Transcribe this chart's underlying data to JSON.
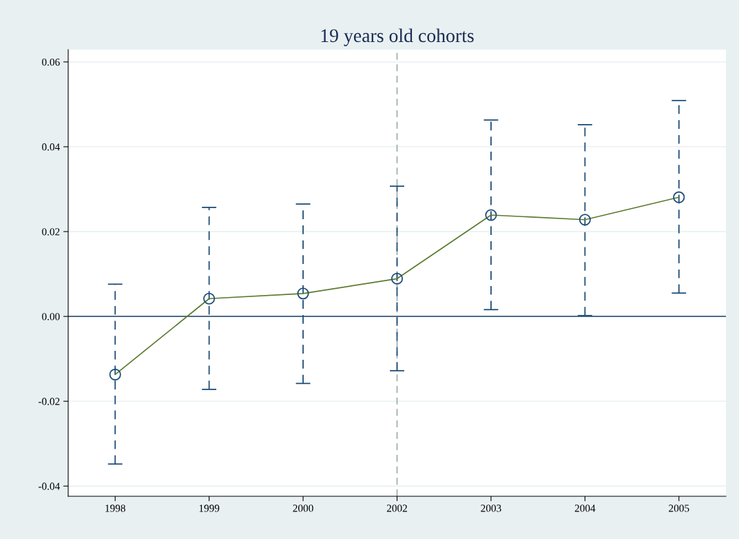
{
  "chart_data": {
    "type": "line",
    "title": "19 years old cohorts",
    "categories": [
      "1998",
      "1999",
      "2000",
      "2002",
      "2003",
      "2004",
      "2005"
    ],
    "series": [
      {
        "color": "#5a7a2e",
        "values": [
          -0.0137,
          0.0042,
          0.0054,
          0.0089,
          0.0239,
          0.0228,
          0.0281
        ],
        "errors": [
          [
            -0.0348,
            0.0076
          ],
          [
            -0.0172,
            0.0257
          ],
          [
            -0.0158,
            0.0265
          ],
          [
            -0.0128,
            0.0307
          ],
          [
            0.0016,
            0.0463
          ],
          [
            0.0002,
            0.0452
          ],
          [
            0.0055,
            0.0509
          ]
        ]
      }
    ],
    "ylim": [
      -0.0424,
      0.0629
    ],
    "yticks": [
      {
        "value": -0.04,
        "label": "-0.04"
      },
      {
        "value": -0.02,
        "label": "-0.02"
      },
      {
        "value": 0,
        "label": "0.00"
      },
      {
        "value": 0.02,
        "label": "0.02"
      },
      {
        "value": 0.04,
        "label": "0.04"
      },
      {
        "value": 0.06,
        "label": "0.06"
      }
    ],
    "ref_lines": [
      {
        "axis": "y",
        "value": 0,
        "color": "#4a6b88",
        "line_style": "solid"
      },
      {
        "axis": "x",
        "value": "2002",
        "color": "#9aaaa8",
        "line_style": "dashed"
      }
    ],
    "grid": "y",
    "marker": "circle",
    "line_style": "solid"
  }
}
